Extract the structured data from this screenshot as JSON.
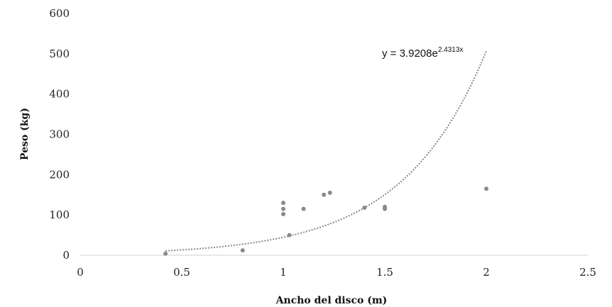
{
  "chart_data": {
    "type": "scatter",
    "xlabel": "Ancho del disco (m)",
    "ylabel": "Peso (kg)",
    "xlim": [
      0,
      2.5
    ],
    "ylim": [
      0,
      600
    ],
    "x_ticks": [
      "0",
      "0.5",
      "1",
      "1.5",
      "2",
      "2.5"
    ],
    "y_ticks": [
      "0",
      "100",
      "200",
      "300",
      "400",
      "500",
      "600"
    ],
    "grid": false,
    "legend": "none",
    "points": [
      {
        "x": 0.42,
        "y": 4
      },
      {
        "x": 0.8,
        "y": 12
      },
      {
        "x": 1.0,
        "y": 102
      },
      {
        "x": 1.0,
        "y": 115
      },
      {
        "x": 1.0,
        "y": 130
      },
      {
        "x": 1.03,
        "y": 50
      },
      {
        "x": 1.1,
        "y": 115
      },
      {
        "x": 1.2,
        "y": 150
      },
      {
        "x": 1.23,
        "y": 155
      },
      {
        "x": 1.4,
        "y": 118
      },
      {
        "x": 1.5,
        "y": 115
      },
      {
        "x": 1.5,
        "y": 120
      },
      {
        "x": 2.0,
        "y": 165
      }
    ],
    "trendline": {
      "type": "exponential",
      "a": 3.9208,
      "b": 2.4313,
      "x_range": [
        0.42,
        2.0
      ],
      "equation_base": "y = 3.9208e",
      "equation_exponent": "2.4313x"
    },
    "colors": {
      "points": "#8a8a8a",
      "trendline": "#8a8a8a",
      "axis": "#d0d0d0"
    }
  }
}
